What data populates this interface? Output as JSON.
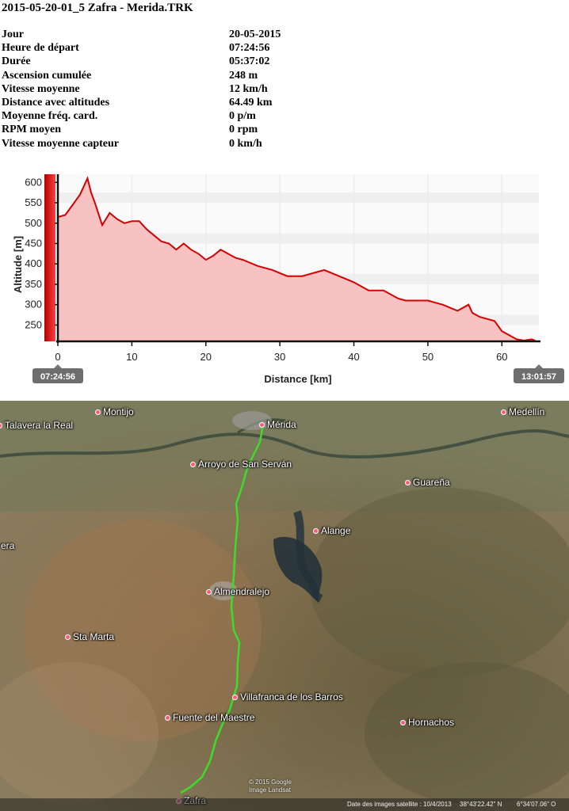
{
  "title": "2015-05-20-01_5 Zafra - Merida.TRK",
  "stats": [
    {
      "label": "Jour",
      "value": "20-05-2015"
    },
    {
      "label": "Heure de départ",
      "value": "07:24:56"
    },
    {
      "label": "Durée",
      "value": "05:37:02"
    },
    {
      "label": "Ascension cumulée",
      "value": "248 m"
    },
    {
      "label": "Vitesse moyenne",
      "value": "12 km/h"
    },
    {
      "label": "Distance avec altitudes",
      "value": "64.49 km"
    },
    {
      "label": "Moyenne fréq. card.",
      "value": "0 p/m"
    },
    {
      "label": "RPM moyen",
      "value": "0 rpm"
    },
    {
      "label": "Vitesse moyenne capteur",
      "value": "0 km/h"
    }
  ],
  "chart_data": {
    "type": "area",
    "xlabel": "Distance [km]",
    "ylabel": "Altitude [m]",
    "xlim": [
      0,
      65
    ],
    "ylim": [
      210,
      620
    ],
    "xticks": [
      0,
      10,
      20,
      30,
      40,
      50,
      60
    ],
    "yticks": [
      250,
      300,
      350,
      400,
      450,
      500,
      550,
      600
    ],
    "start_time": "07:24:56",
    "end_time": "13:01:57",
    "colors": {
      "line": "#d40000",
      "fill": "#f8c2c2",
      "grid": "#ececec"
    },
    "x": [
      0,
      1,
      2,
      3,
      3.5,
      4,
      4.5,
      5,
      6,
      7,
      8,
      9,
      10,
      11,
      12,
      13,
      14,
      15,
      16,
      17,
      18,
      19,
      20,
      21,
      22,
      23,
      24,
      25,
      27,
      29,
      31,
      33,
      35,
      36,
      38,
      40,
      42,
      44,
      46,
      47,
      48,
      50,
      52,
      54,
      55.5,
      56,
      57,
      58,
      59,
      60,
      61,
      62,
      63,
      64,
      64.49
    ],
    "y": [
      515,
      520,
      545,
      570,
      590,
      610,
      575,
      550,
      495,
      525,
      510,
      500,
      505,
      505,
      485,
      470,
      455,
      450,
      435,
      450,
      435,
      425,
      410,
      420,
      435,
      425,
      415,
      410,
      395,
      385,
      370,
      370,
      380,
      385,
      370,
      355,
      335,
      335,
      315,
      310,
      310,
      310,
      300,
      285,
      300,
      280,
      270,
      265,
      260,
      235,
      225,
      215,
      212,
      215,
      212
    ]
  },
  "map": {
    "places": [
      {
        "name": "Montijo"
      },
      {
        "name": "Talavera la Real"
      },
      {
        "name": "Mérida"
      },
      {
        "name": "Medellín"
      },
      {
        "name": "Arroyo de San Serván"
      },
      {
        "name": "Guareña"
      },
      {
        "name": "Alange"
      },
      {
        "name": "era"
      },
      {
        "name": "Almendralejo"
      },
      {
        "name": "Sta Marta"
      },
      {
        "name": "Villafranca de los Barros"
      },
      {
        "name": "Fuente del Maestre"
      },
      {
        "name": "Hornachos"
      },
      {
        "name": "Zafra"
      }
    ],
    "attribution_1": "© 2015 Google",
    "attribution_2": "Image Landsat",
    "status_imagery": "Date des images satellite : 10/4/2013",
    "status_lat": "38°43'22.42\" N",
    "status_lon": "6°34'07.06\" O",
    "route_color": "#3ddc2a"
  }
}
